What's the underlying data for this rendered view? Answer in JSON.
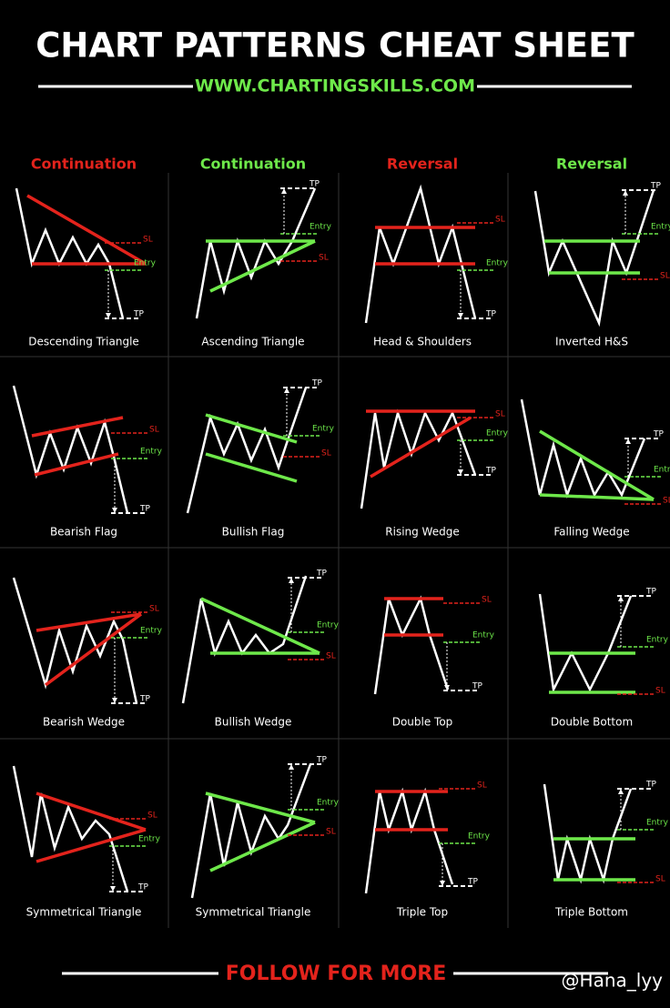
{
  "header": {
    "title": "CHART PATTERNS CHEAT SHEET",
    "url": "WWW.CHARTINGSKILLS.COM"
  },
  "columns": [
    {
      "label": "Continuation"
    },
    {
      "label": "Continuation"
    },
    {
      "label": "Reversal"
    },
    {
      "label": "Reversal"
    }
  ],
  "patterns": [
    {
      "name": "Descending Triangle",
      "tp": "TP",
      "sl": "SL",
      "entry": "Entry"
    },
    {
      "name": "Ascending Triangle",
      "tp": "TP",
      "sl": "SL",
      "entry": "Entry"
    },
    {
      "name": "Head & Shoulders",
      "tp": "TP",
      "sl": "SL",
      "entry": "Entry"
    },
    {
      "name": "Inverted H&S",
      "tp": "TP",
      "sl": "SL",
      "entry": "Entry"
    },
    {
      "name": "Bearish Flag",
      "tp": "TP",
      "sl": "SL",
      "entry": "Entry"
    },
    {
      "name": "Bullish Flag",
      "tp": "TP",
      "sl": "SL",
      "entry": "Entry"
    },
    {
      "name": "Rising Wedge",
      "tp": "TP",
      "sl": "SL",
      "entry": "Entry"
    },
    {
      "name": "Falling Wedge",
      "tp": "TP",
      "sl": "SL",
      "entry": "Entry"
    },
    {
      "name": "Bearish Wedge",
      "tp": "TP",
      "sl": "SL",
      "entry": "Entry"
    },
    {
      "name": "Bullish Wedge",
      "tp": "TP",
      "sl": "SL",
      "entry": "Entry"
    },
    {
      "name": "Double Top",
      "tp": "TP",
      "sl": "SL",
      "entry": "Entry"
    },
    {
      "name": "Double Bottom",
      "tp": "TP",
      "sl": "SL",
      "entry": "Entry"
    },
    {
      "name": "Symmetrical Triangle",
      "tp": "TP",
      "sl": "SL",
      "entry": "Entry"
    },
    {
      "name": "Symmetrical Triangle",
      "tp": "TP",
      "sl": "SL",
      "entry": "Entry"
    },
    {
      "name": "Triple Top",
      "tp": "TP",
      "sl": "SL",
      "entry": "Entry"
    },
    {
      "name": "Triple Bottom",
      "tp": "TP",
      "sl": "SL",
      "entry": "Entry"
    }
  ],
  "footer": {
    "cta": "FOLLOW FOR MORE",
    "watermark": "@Hana_lyy"
  }
}
